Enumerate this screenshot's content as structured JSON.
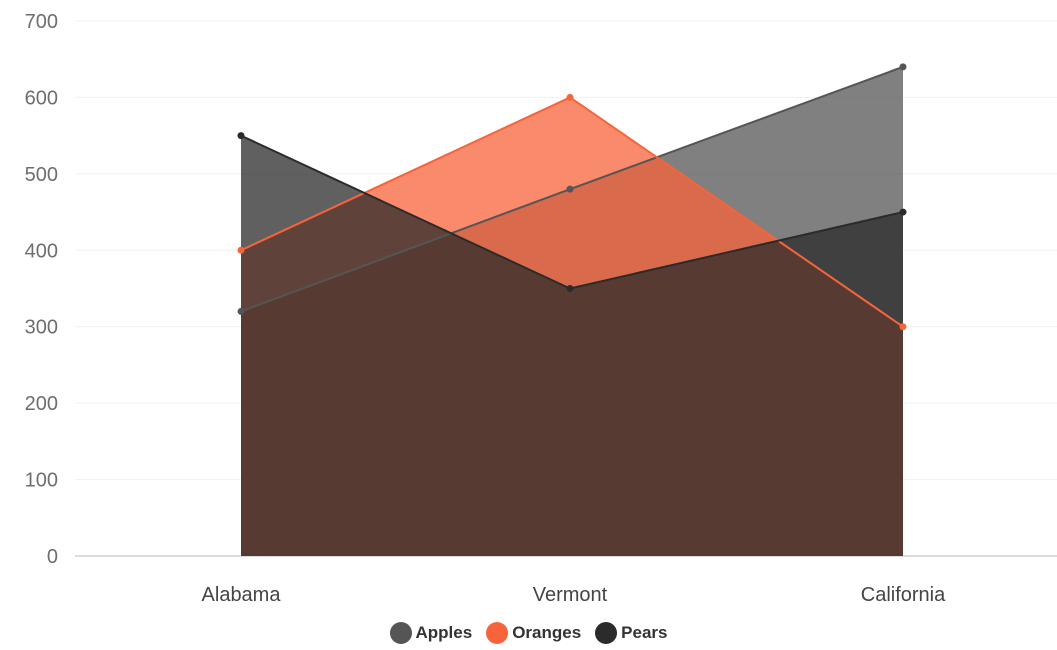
{
  "chart_data": {
    "type": "area",
    "categories": [
      "Alabama",
      "Vermont",
      "California"
    ],
    "series": [
      {
        "name": "Apples",
        "color": "#555555",
        "values": [
          320,
          480,
          640
        ]
      },
      {
        "name": "Oranges",
        "color": "#f7643b",
        "values": [
          400,
          600,
          300
        ]
      },
      {
        "name": "Pears",
        "color": "#2b2b2b",
        "values": [
          550,
          350,
          450
        ]
      }
    ],
    "ylim": [
      0,
      700
    ],
    "yticks": [
      0,
      100,
      200,
      300,
      400,
      500,
      600,
      700
    ],
    "grid": true,
    "legend_position": "bottom"
  }
}
